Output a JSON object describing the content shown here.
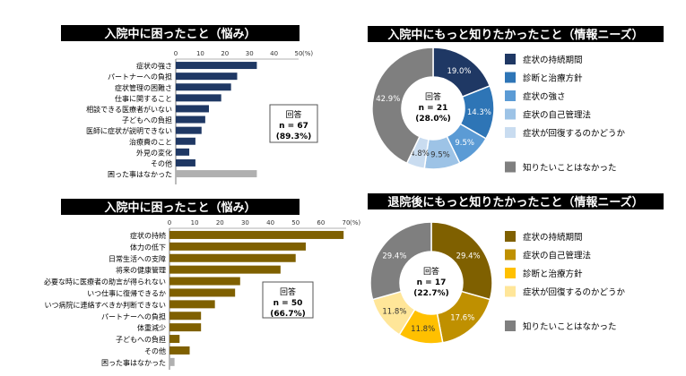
{
  "chart_data": [
    {
      "type": "bar",
      "orientation": "horizontal",
      "title": "入院中に困ったこと（悩み）",
      "unit": "(%)",
      "ticks": [
        "0",
        "10",
        "20",
        "30",
        "40",
        "50"
      ],
      "xlim": [
        0,
        50
      ],
      "categories": [
        "症状の強さ",
        "パートナーへの負担",
        "症状管理の困難さ",
        "仕事に関すること",
        "相談できる医療者がいない",
        "子どもへの負担",
        "医師に症状が説明できない",
        "治療費のこと",
        "外見の変化",
        "その他",
        "困った事はなかった"
      ],
      "values": [
        33.0,
        25.0,
        22.5,
        18.5,
        13.5,
        12.0,
        10.5,
        8.0,
        5.5,
        8.0,
        33.0
      ],
      "colors": [
        "#1f3864",
        "#1f3864",
        "#1f3864",
        "#1f3864",
        "#1f3864",
        "#1f3864",
        "#1f3864",
        "#1f3864",
        "#1f3864",
        "#1f3864",
        "#b0b0b0"
      ],
      "answer_label": "回答",
      "n_label": "n = 67",
      "rate_label": "(89.3%)"
    },
    {
      "type": "pie",
      "title": "入院中にもっと知りたかったこと（情報ニーズ）",
      "labels": [
        "症状の持続期間",
        "診断と治療方針",
        "症状の強さ",
        "症状の自己管理法",
        "症状が回復するのかどうか",
        "知りたいことはなかった"
      ],
      "values": [
        19.0,
        14.3,
        9.5,
        9.5,
        4.8,
        42.9
      ],
      "value_labels": [
        "19.0%",
        "14.3%",
        "9.5%",
        "9.5%",
        "4.8%",
        "42.9%"
      ],
      "colors": [
        "#1f3864",
        "#2e75b6",
        "#5b9bd5",
        "#9dc3e6",
        "#c9dcf0",
        "#7f7f7f"
      ],
      "center_label": "回答",
      "n_label": "n = 21",
      "rate_label": "(28.0%)"
    },
    {
      "type": "bar",
      "orientation": "horizontal",
      "title": "入院中に困ったこと（悩み）",
      "unit": "(%)",
      "ticks": [
        "0",
        "10",
        "20",
        "30",
        "40",
        "50",
        "60",
        "70"
      ],
      "xlim": [
        0,
        70
      ],
      "categories": [
        "症状の持続",
        "体力の低下",
        "日常生活への支障",
        "将来の健康管理",
        "必要な時に医療者の助言が得られない",
        "いつ仕事に復帰できるか",
        "いつ病院に連絡すべきか判断できない",
        "パートナーへの負担",
        "体重減少",
        "子どもへの負担",
        "その他",
        "困った事はなかった"
      ],
      "values": [
        69.0,
        54.0,
        50.0,
        44.0,
        28.0,
        26.0,
        18.0,
        12.5,
        12.5,
        4.0,
        8.0,
        2.0
      ],
      "colors": [
        "#7f6000",
        "#7f6000",
        "#7f6000",
        "#7f6000",
        "#7f6000",
        "#7f6000",
        "#7f6000",
        "#7f6000",
        "#7f6000",
        "#7f6000",
        "#7f6000",
        "#b0b0b0"
      ],
      "answer_label": "回答",
      "n_label": "n = 50",
      "rate_label": "(66.7%)"
    },
    {
      "type": "pie",
      "title": "退院後にもっと知りたかったこと（情報ニーズ）",
      "labels": [
        "症状の持続期間",
        "症状の自己管理法",
        "診断と治療方針",
        "症状が回復するのかどうか",
        "知りたいことはなかった"
      ],
      "values": [
        29.4,
        17.6,
        11.8,
        11.8,
        29.4
      ],
      "value_labels": [
        "29.4%",
        "17.6%",
        "11.8%",
        "11.8%",
        "29.4%"
      ],
      "colors": [
        "#7f6000",
        "#bf9000",
        "#ffc000",
        "#ffe699",
        "#7f7f7f"
      ],
      "center_label": "回答",
      "n_label": "n = 17",
      "rate_label": "(22.7%)"
    }
  ]
}
